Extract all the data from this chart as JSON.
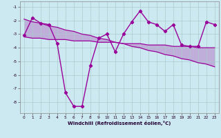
{
  "x": [
    0,
    1,
    2,
    3,
    4,
    5,
    6,
    7,
    8,
    9,
    10,
    11,
    12,
    13,
    14,
    15,
    16,
    17,
    18,
    19,
    20,
    21,
    22,
    23
  ],
  "line1": [
    -3.1,
    -1.8,
    -2.2,
    -2.3,
    -3.7,
    -7.3,
    -8.3,
    -8.3,
    -5.3,
    -3.3,
    -3.0,
    -4.3,
    -3.0,
    -2.1,
    -1.3,
    -2.1,
    -2.3,
    -2.8,
    -2.3,
    -3.8,
    -3.9,
    -3.9,
    -2.1,
    -2.3
  ],
  "trend_line1": [
    -1.9,
    -2.1,
    -2.2,
    -2.4,
    -2.5,
    -2.7,
    -2.8,
    -3.0,
    -3.1,
    -3.3,
    -3.4,
    -3.6,
    -3.7,
    -3.9,
    -4.0,
    -4.2,
    -4.3,
    -4.5,
    -4.6,
    -4.8,
    -4.9,
    -5.1,
    -5.2,
    -5.4
  ],
  "trend_line2": [
    -3.2,
    -3.3,
    -3.3,
    -3.4,
    -3.4,
    -3.4,
    -3.5,
    -3.5,
    -3.5,
    -3.6,
    -3.6,
    -3.6,
    -3.7,
    -3.7,
    -3.7,
    -3.8,
    -3.8,
    -3.8,
    -3.9,
    -3.9,
    -3.9,
    -4.0,
    -4.0,
    -4.0
  ],
  "main_color": "#990099",
  "bg_color": "#cce8f0",
  "grid_color": "#aacccc",
  "xlabel": "Windchill (Refroidissement éolien,°C)",
  "ylim": [
    -8.8,
    -0.6
  ],
  "xlim": [
    -0.5,
    23.5
  ],
  "yticks": [
    -1,
    -2,
    -3,
    -4,
    -5,
    -6,
    -7,
    -8
  ],
  "xticks": [
    0,
    1,
    2,
    3,
    4,
    5,
    6,
    7,
    8,
    9,
    10,
    11,
    12,
    13,
    14,
    15,
    16,
    17,
    18,
    19,
    20,
    21,
    22,
    23
  ]
}
